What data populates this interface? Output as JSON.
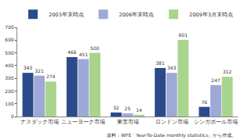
{
  "chart_data": {
    "type": "bar",
    "categories": [
      "ナスダック市場",
      "ニューヨーク市場",
      "東京市場",
      "ロンドン市場",
      "シンガポール市場"
    ],
    "series": [
      {
        "name": "2003年末時点",
        "color": "#2b4a8b",
        "values": [
          343,
          466,
          32,
          381,
          76
        ]
      },
      {
        "name": "2006年末時点",
        "color": "#9ea9d8",
        "values": [
          321,
          451,
          25,
          343,
          247
        ]
      },
      {
        "name": "2009年3月末時点",
        "color": "#a8d48c",
        "values": [
          274,
          500,
          14,
          601,
          312
        ]
      }
    ],
    "ylim": [
      0,
      700
    ],
    "yticks": [
      0,
      100,
      200,
      300,
      400,
      500,
      600,
      700
    ],
    "grid": false,
    "legend": "top",
    "data_labels": true,
    "annotations": [
      "資料：WFE「Year-To-Date monthly statistics」から作成。"
    ]
  }
}
